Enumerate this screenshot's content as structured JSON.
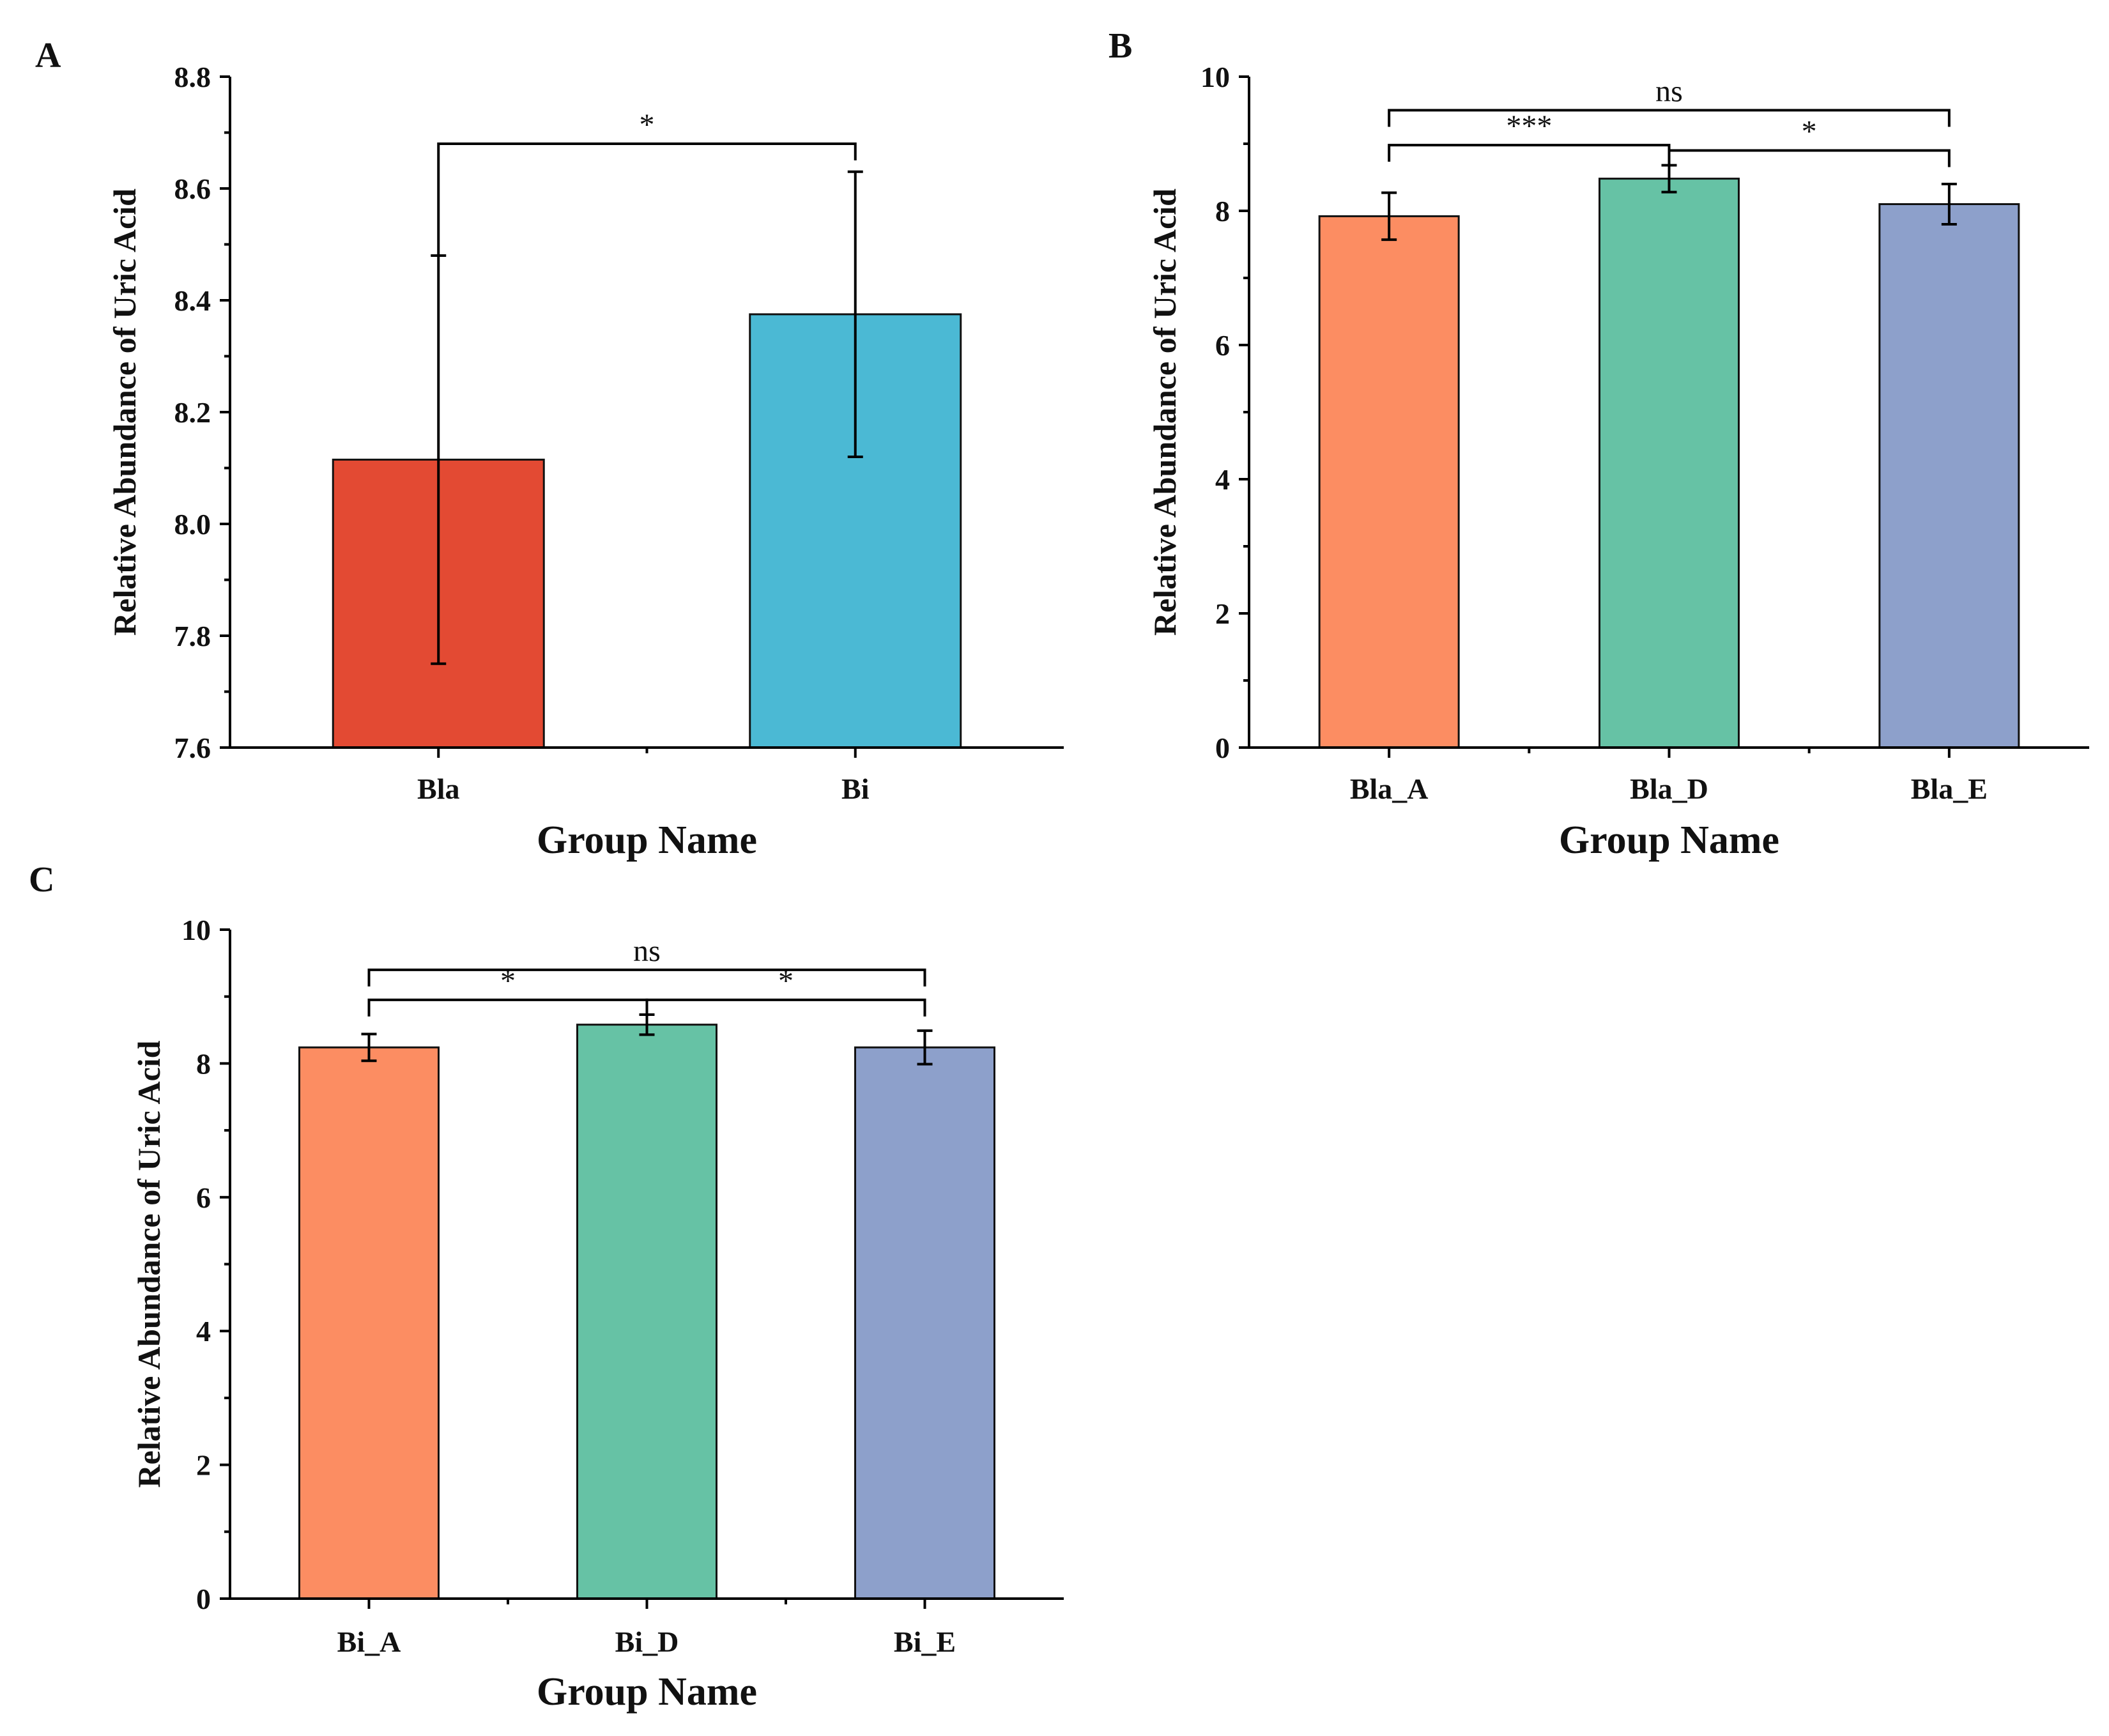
{
  "chart_data": [
    {
      "id": "A",
      "type": "bar",
      "panel_label": "A",
      "categories": [
        "Bla",
        "Bi"
      ],
      "values": [
        8.115,
        8.375
      ],
      "errors": [
        0.365,
        0.255
      ],
      "colors": [
        "#E34A33",
        "#4BB9D4"
      ],
      "ylim": [
        7.6,
        8.8
      ],
      "yticks": [
        7.6,
        7.8,
        8.0,
        8.2,
        8.4,
        8.6,
        8.8
      ],
      "ytick_labels": [
        "7.6",
        "7.8",
        "8.0",
        "8.2",
        "8.4",
        "8.6",
        "8.8"
      ],
      "ylabel": "Relative Abundance of Uric Acid",
      "xlabel": "Group Name",
      "brackets": [
        {
          "from": 0,
          "to": 1,
          "label": "*",
          "level": 8.68
        }
      ]
    },
    {
      "id": "B",
      "type": "bar",
      "panel_label": "B",
      "categories": [
        "Bla_A",
        "Bla_D",
        "Bla_E"
      ],
      "values": [
        7.92,
        8.48,
        8.1
      ],
      "errors": [
        0.35,
        0.2,
        0.3
      ],
      "colors": [
        "#FC8D62",
        "#66C2A5",
        "#8DA0CB"
      ],
      "ylim": [
        0,
        10
      ],
      "yticks": [
        0,
        2,
        4,
        6,
        8,
        10
      ],
      "ytick_labels": [
        "0",
        "2",
        "4",
        "6",
        "8",
        "10"
      ],
      "ylabel": "Relative Abundance of Uric Acid",
      "xlabel": "Group Name",
      "brackets": [
        {
          "from": 0,
          "to": 2,
          "label": "ns",
          "level": 9.5
        },
        {
          "from": 0,
          "to": 1,
          "label": "***",
          "level": 8.98
        },
        {
          "from": 1,
          "to": 2,
          "label": "*",
          "level": 8.9
        }
      ]
    },
    {
      "id": "C",
      "type": "bar",
      "panel_label": "C",
      "categories": [
        "Bi_A",
        "Bi_D",
        "Bi_E"
      ],
      "values": [
        8.24,
        8.58,
        8.24
      ],
      "errors": [
        0.2,
        0.15,
        0.25
      ],
      "colors": [
        "#FC8D62",
        "#66C2A5",
        "#8DA0CB"
      ],
      "ylim": [
        0,
        10
      ],
      "yticks": [
        0,
        2,
        4,
        6,
        8,
        10
      ],
      "ytick_labels": [
        "0",
        "2",
        "4",
        "6",
        "8",
        "10"
      ],
      "ylabel": "Relative Abundance of Uric Acid",
      "xlabel": "Group Name",
      "brackets": [
        {
          "from": 0,
          "to": 2,
          "label": "ns",
          "level": 9.4
        },
        {
          "from": 0,
          "to": 1,
          "label": "*",
          "level": 8.95
        },
        {
          "from": 1,
          "to": 2,
          "label": "*",
          "level": 8.95
        }
      ]
    }
  ]
}
